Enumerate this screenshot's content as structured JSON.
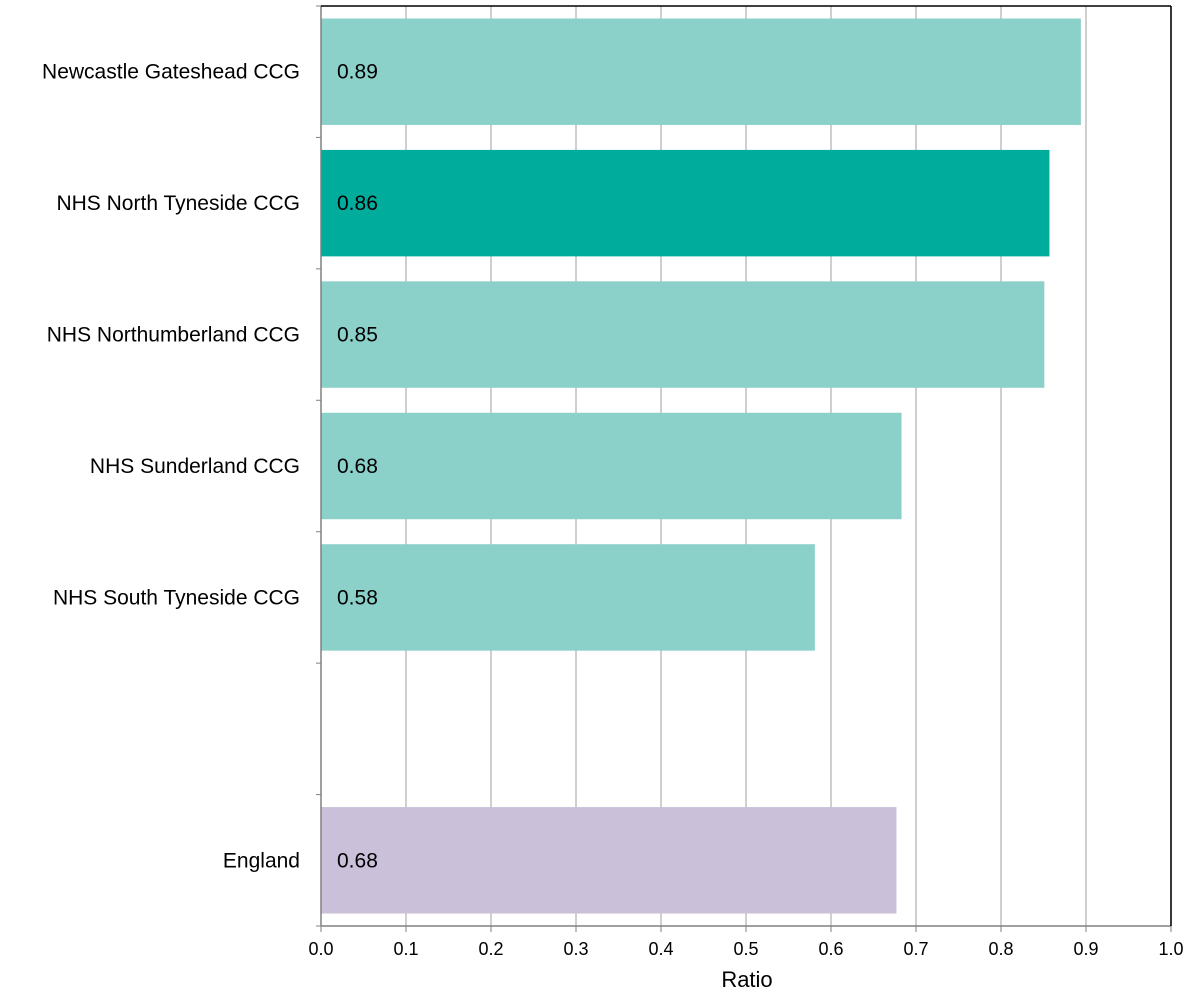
{
  "chart_data": {
    "type": "bar",
    "orientation": "horizontal",
    "categories": [
      "Newcastle Gateshead CCG",
      "NHS North Tyneside CCG",
      "NHS Northumberland CCG",
      "NHS Sunderland CCG",
      "NHS South Tyneside CCG",
      "",
      "England"
    ],
    "values": [
      0.894,
      0.857,
      0.851,
      0.683,
      0.581,
      null,
      0.677
    ],
    "data_labels": [
      "0.89",
      "0.86",
      "0.85",
      "0.68",
      "0.58",
      "",
      "0.68"
    ],
    "bar_colors": [
      "#8bd1ca",
      "#00ac9c",
      "#8bd1ca",
      "#8bd1ca",
      "#8bd1ca",
      "",
      "#cbc0da"
    ],
    "title": "",
    "xlabel": "Ratio",
    "ylabel": "",
    "xlim": [
      0,
      1.0
    ],
    "xticks": [
      "0.0",
      "0.1",
      "0.2",
      "0.3",
      "0.4",
      "0.5",
      "0.6",
      "0.7",
      "0.8",
      "0.9",
      "1.0"
    ],
    "grid": "vertical",
    "legend": "none"
  }
}
